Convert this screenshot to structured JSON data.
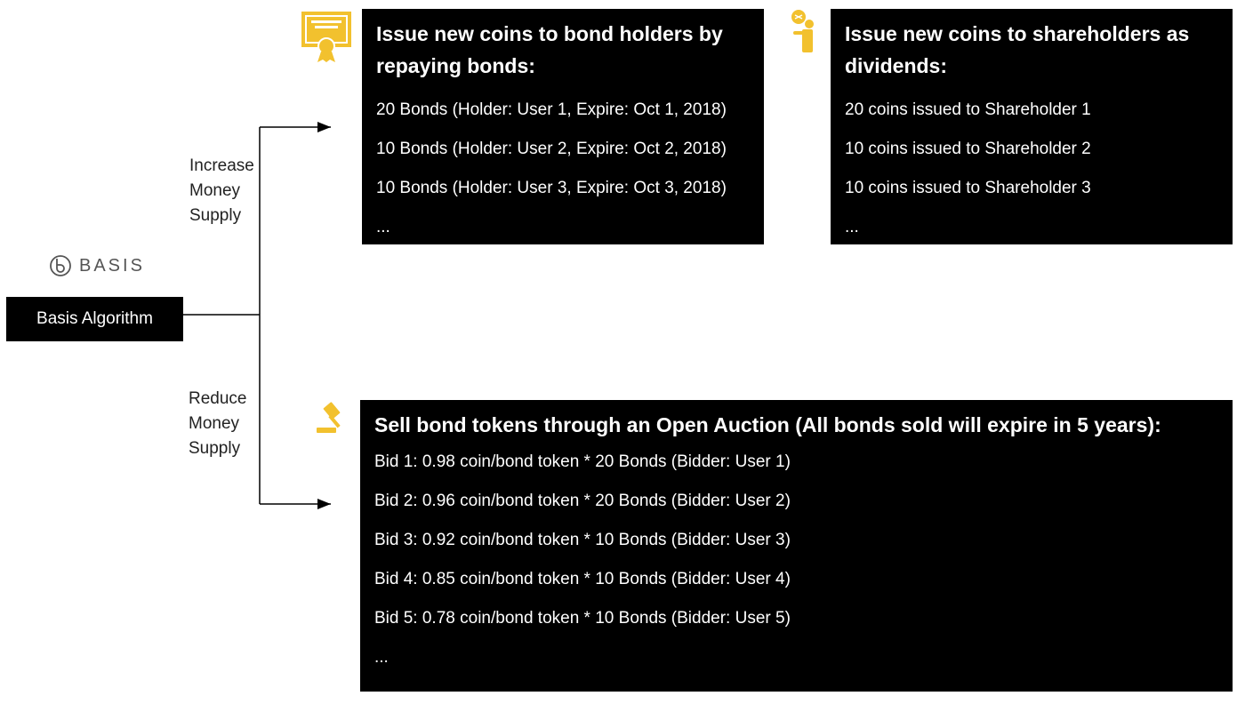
{
  "brand": {
    "logo_text": "BASIS",
    "icon": "basis-logo-icon"
  },
  "algorithm_box": {
    "label": "Basis Algorithm"
  },
  "branches": {
    "increase": {
      "label_lines": [
        "Increase",
        "Money",
        "Supply"
      ]
    },
    "reduce": {
      "label_lines": [
        "Reduce",
        "Money",
        "Supply"
      ]
    }
  },
  "panels": {
    "bonds": {
      "icon": "bond-certificate-icon",
      "title": "Issue new coins to bond holders by repaying bonds:",
      "lines": [
        "20 Bonds (Holder: User 1, Expire: Oct 1, 2018)",
        "10 Bonds (Holder: User 2, Expire: Oct 2, 2018)",
        "10 Bonds (Holder: User 3, Expire: Oct 3, 2018)"
      ],
      "ellipsis": "..."
    },
    "shareholders": {
      "icon": "shareholder-coins-icon",
      "title": "Issue new coins to shareholders as dividends:",
      "lines": [
        "20 coins issued to Shareholder 1",
        "10 coins issued to Shareholder 2",
        "10 coins issued to Shareholder 3"
      ],
      "ellipsis": "..."
    },
    "auction": {
      "icon": "gavel-icon",
      "title": "Sell bond tokens through an Open Auction (All bonds sold will expire in 5 years):",
      "lines": [
        "Bid 1: 0.98 coin/bond token * 20 Bonds (Bidder: User 1)",
        "Bid 2: 0.96 coin/bond token * 20 Bonds (Bidder: User 2)",
        "Bid 3: 0.92 coin/bond token * 10 Bonds (Bidder: User 3)",
        "Bid 4: 0.85 coin/bond token * 10 Bonds (Bidder: User 4)",
        "Bid 5: 0.78 coin/bond token * 10 Bonds (Bidder: User 5)"
      ],
      "ellipsis": "..."
    }
  },
  "colors": {
    "panel_bg": "#000000",
    "panel_text": "#ffffff",
    "icon_gold": "#F2C12E",
    "connector": "#000000"
  }
}
